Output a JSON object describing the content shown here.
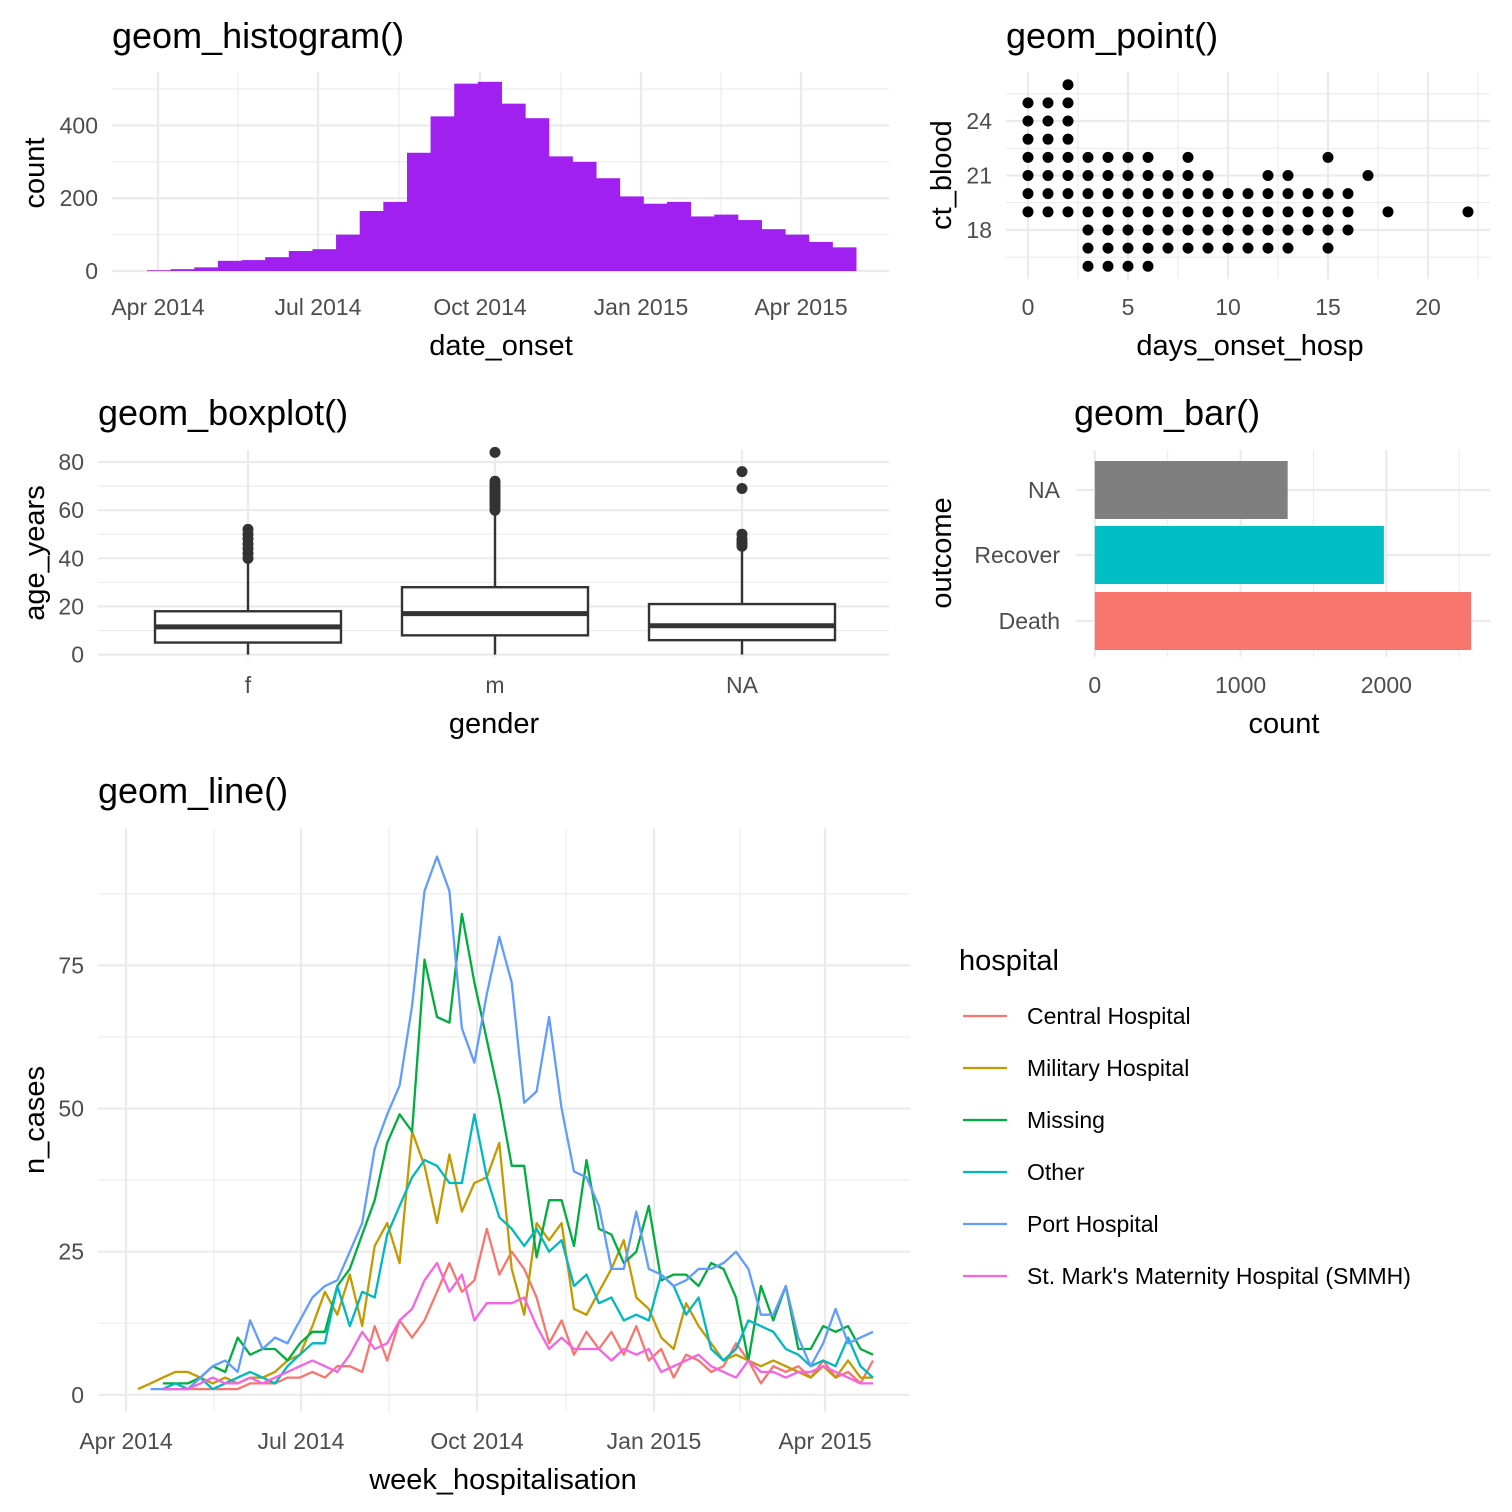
{
  "chart_data": [
    {
      "id": "histogram",
      "type": "bar",
      "title": "geom_histogram()",
      "xlabel": "date_onset",
      "ylabel": "count",
      "x_tick_labels": [
        "Apr 2014",
        "Jul 2014",
        "Oct 2014",
        "Jan 2015",
        "Apr 2015"
      ],
      "y_ticks": [
        0,
        200,
        400
      ],
      "ylim": [
        0,
        525
      ],
      "color": "#A020F0",
      "values": [
        2,
        5,
        10,
        28,
        30,
        38,
        55,
        60,
        100,
        165,
        190,
        325,
        425,
        515,
        520,
        460,
        420,
        315,
        300,
        255,
        205,
        185,
        190,
        150,
        155,
        140,
        115,
        100,
        80,
        65
      ]
    },
    {
      "id": "scatter",
      "type": "scatter",
      "title": "geom_point()",
      "xlabel": "days_onset_hosp",
      "ylabel": "ct_blood",
      "x_ticks": [
        0,
        5,
        10,
        15,
        20
      ],
      "y_ticks": [
        18,
        21,
        24
      ],
      "xlim": [
        -1.1,
        23.1
      ],
      "ylim": [
        15.3,
        26.7
      ],
      "color": "#000000",
      "points": [
        [
          0,
          19
        ],
        [
          0,
          20
        ],
        [
          0,
          21
        ],
        [
          0,
          22
        ],
        [
          0,
          23
        ],
        [
          0,
          24
        ],
        [
          0,
          25
        ],
        [
          1,
          19
        ],
        [
          1,
          20
        ],
        [
          1,
          21
        ],
        [
          1,
          22
        ],
        [
          1,
          23
        ],
        [
          1,
          24
        ],
        [
          1,
          25
        ],
        [
          2,
          19
        ],
        [
          2,
          20
        ],
        [
          2,
          21
        ],
        [
          2,
          22
        ],
        [
          2,
          23
        ],
        [
          2,
          24
        ],
        [
          2,
          25
        ],
        [
          2,
          26
        ],
        [
          3,
          16
        ],
        [
          3,
          17
        ],
        [
          3,
          18
        ],
        [
          3,
          19
        ],
        [
          3,
          20
        ],
        [
          3,
          21
        ],
        [
          3,
          22
        ],
        [
          4,
          16
        ],
        [
          4,
          17
        ],
        [
          4,
          18
        ],
        [
          4,
          19
        ],
        [
          4,
          20
        ],
        [
          4,
          21
        ],
        [
          4,
          22
        ],
        [
          5,
          16
        ],
        [
          5,
          17
        ],
        [
          5,
          18
        ],
        [
          5,
          19
        ],
        [
          5,
          20
        ],
        [
          5,
          21
        ],
        [
          5,
          22
        ],
        [
          6,
          16
        ],
        [
          6,
          17
        ],
        [
          6,
          18
        ],
        [
          6,
          19
        ],
        [
          6,
          20
        ],
        [
          6,
          21
        ],
        [
          6,
          22
        ],
        [
          7,
          17
        ],
        [
          7,
          18
        ],
        [
          7,
          19
        ],
        [
          7,
          20
        ],
        [
          7,
          21
        ],
        [
          8,
          17
        ],
        [
          8,
          18
        ],
        [
          8,
          19
        ],
        [
          8,
          20
        ],
        [
          8,
          21
        ],
        [
          8,
          22
        ],
        [
          9,
          17
        ],
        [
          9,
          18
        ],
        [
          9,
          19
        ],
        [
          9,
          20
        ],
        [
          9,
          21
        ],
        [
          10,
          17
        ],
        [
          10,
          18
        ],
        [
          10,
          19
        ],
        [
          10,
          20
        ],
        [
          11,
          17
        ],
        [
          11,
          18
        ],
        [
          11,
          19
        ],
        [
          11,
          20
        ],
        [
          12,
          17
        ],
        [
          12,
          18
        ],
        [
          12,
          19
        ],
        [
          12,
          20
        ],
        [
          12,
          21
        ],
        [
          13,
          17
        ],
        [
          13,
          18
        ],
        [
          13,
          19
        ],
        [
          13,
          20
        ],
        [
          13,
          21
        ],
        [
          14,
          18
        ],
        [
          14,
          19
        ],
        [
          14,
          20
        ],
        [
          15,
          17
        ],
        [
          15,
          18
        ],
        [
          15,
          19
        ],
        [
          15,
          20
        ],
        [
          15,
          22
        ],
        [
          16,
          18
        ],
        [
          16,
          19
        ],
        [
          16,
          20
        ],
        [
          17,
          21
        ],
        [
          18,
          19
        ],
        [
          22,
          19
        ]
      ]
    },
    {
      "id": "boxplot",
      "type": "boxplot",
      "title": "geom_boxplot()",
      "xlabel": "gender",
      "ylabel": "age_years",
      "categories": [
        "f",
        "m",
        "NA"
      ],
      "y_ticks": [
        0,
        20,
        40,
        60,
        80
      ],
      "ylim": [
        -1,
        85
      ],
      "boxes": [
        {
          "category": "f",
          "whisker_low": 0,
          "q1": 5,
          "median": 11.5,
          "q3": 18,
          "whisker_high": 38,
          "outliers": [
            40,
            42,
            44,
            46,
            48,
            50,
            52
          ]
        },
        {
          "category": "m",
          "whisker_low": 0,
          "q1": 8,
          "median": 17,
          "q3": 28,
          "whisker_high": 58,
          "outliers": [
            60,
            61,
            62,
            63,
            64,
            65,
            66,
            67,
            68,
            69,
            70,
            71,
            72,
            84
          ]
        },
        {
          "category": "NA",
          "whisker_low": 0,
          "q1": 6,
          "median": 12,
          "q3": 21,
          "whisker_high": 43,
          "outliers": [
            45,
            46,
            47,
            48,
            50,
            69,
            76
          ]
        }
      ]
    },
    {
      "id": "bar",
      "type": "bar",
      "orientation": "horizontal",
      "title": "geom_bar()",
      "xlabel": "count",
      "ylabel": "outcome",
      "categories": [
        "Death",
        "Recover",
        "NA"
      ],
      "values": [
        2582,
        1983,
        1323
      ],
      "colors": [
        "#F8766D",
        "#00BFC4",
        "#7F7F7F"
      ],
      "x_ticks": [
        0,
        1000,
        2000
      ],
      "xlim": [
        -129,
        2711
      ]
    },
    {
      "id": "line",
      "type": "line",
      "title": "geom_line()",
      "xlabel": "week_hospitalisation",
      "ylabel": "n_cases",
      "x_tick_labels": [
        "Apr 2014",
        "Jul 2014",
        "Oct 2014",
        "Jan 2015",
        "Apr 2015"
      ],
      "y_ticks": [
        0,
        25,
        50,
        75
      ],
      "ylim": [
        -3,
        99
      ],
      "legend_title": "hospital",
      "legend_position": "right",
      "series": [
        {
          "name": "Central Hospital",
          "color": "#F8766D",
          "values": [
            null,
            null,
            1,
            1,
            1,
            1,
            1,
            1,
            1,
            2,
            2,
            2,
            3,
            3,
            4,
            3,
            5,
            5,
            4,
            12,
            6,
            13,
            10,
            13,
            18,
            23,
            18,
            20,
            29,
            21,
            25,
            22,
            17,
            9,
            13,
            7,
            11,
            8,
            11,
            7,
            12,
            6,
            8,
            3,
            7,
            6,
            4,
            5,
            9,
            6,
            2,
            5,
            4,
            5,
            3,
            6,
            3,
            4,
            2,
            6
          ]
        },
        {
          "name": "Military Hospital",
          "color": "#C49A00",
          "values": [
            1,
            2,
            3,
            4,
            4,
            3,
            2,
            3,
            2,
            3,
            3,
            4,
            6,
            7,
            12,
            18,
            14,
            21,
            12,
            26,
            30,
            23,
            46,
            40,
            30,
            42,
            32,
            37,
            38,
            44,
            22,
            14,
            30,
            27,
            30,
            15,
            14,
            18,
            22,
            27,
            17,
            15,
            10,
            8,
            16,
            12,
            9,
            6,
            7,
            6,
            5,
            6,
            5,
            4,
            3,
            5,
            3,
            6,
            3,
            3
          ]
        },
        {
          "name": "Missing",
          "color": "#00AD3F",
          "values": [
            null,
            null,
            2,
            2,
            2,
            3,
            5,
            4,
            10,
            7,
            8,
            8,
            6,
            9,
            11,
            11,
            19,
            22,
            28,
            34,
            44,
            49,
            46,
            76,
            66,
            65,
            84,
            72,
            62,
            52,
            40,
            40,
            24,
            34,
            34,
            26,
            41,
            29,
            28,
            23,
            25,
            33,
            20,
            21,
            21,
            19,
            23,
            22,
            17,
            6,
            19,
            13,
            19,
            8,
            8,
            12,
            11,
            12,
            8,
            7
          ]
        },
        {
          "name": "Other",
          "color": "#00B8C0",
          "values": [
            null,
            null,
            1,
            2,
            1,
            3,
            1,
            2,
            3,
            4,
            3,
            2,
            5,
            7,
            9,
            9,
            19,
            12,
            18,
            17,
            28,
            33,
            38,
            41,
            40,
            37,
            37,
            49,
            38,
            31,
            29,
            26,
            29,
            25,
            27,
            19,
            21,
            16,
            17,
            13,
            14,
            13,
            21,
            19,
            14,
            17,
            8,
            6,
            8,
            13,
            12,
            11,
            8,
            7,
            5,
            6,
            5,
            10,
            5,
            3
          ]
        },
        {
          "name": "Port Hospital",
          "color": "#619CFF",
          "values": [
            null,
            1,
            1,
            1,
            1,
            3,
            5,
            6,
            4,
            13,
            8,
            10,
            9,
            13,
            17,
            19,
            20,
            25,
            30,
            43,
            49,
            54,
            68,
            88,
            94,
            88,
            64,
            58,
            70,
            80,
            72,
            51,
            53,
            66,
            50,
            39,
            38,
            33,
            22,
            22,
            32,
            22,
            21,
            19,
            20,
            22,
            22,
            23,
            25,
            22,
            14,
            14,
            19,
            10,
            5,
            9,
            15,
            9,
            10,
            11
          ]
        },
        {
          "name": "St. Mark's Maternity Hospital (SMMH)",
          "color": "#F564E3",
          "values": [
            null,
            null,
            1,
            1,
            1,
            2,
            3,
            2,
            2,
            3,
            2,
            3,
            4,
            5,
            6,
            5,
            4,
            7,
            11,
            8,
            9,
            13,
            15,
            20,
            23,
            18,
            21,
            13,
            16,
            16,
            16,
            17,
            12,
            8,
            10,
            8,
            8,
            8,
            6,
            8,
            7,
            8,
            4,
            5,
            6,
            7,
            5,
            4,
            3,
            6,
            4,
            4,
            3,
            4,
            4,
            5,
            4,
            3,
            2,
            2
          ]
        }
      ]
    }
  ]
}
